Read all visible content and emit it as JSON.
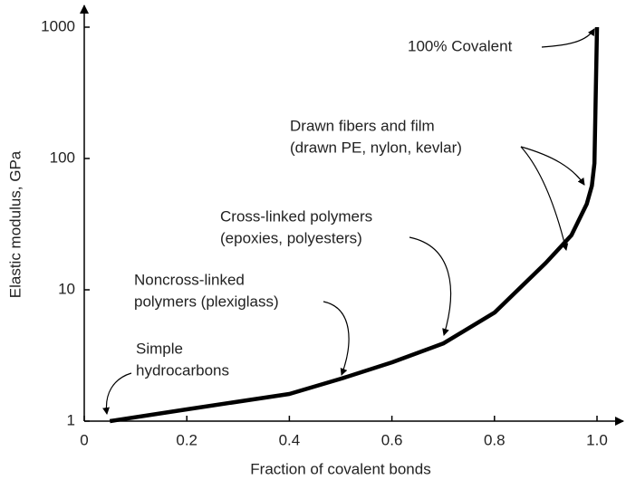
{
  "chart_data": {
    "type": "line",
    "xlabel": "Fraction of covalent bonds",
    "ylabel": "Elastic modulus, GPa",
    "x": [
      0.05,
      0.2,
      0.4,
      0.5,
      0.6,
      0.7,
      0.8,
      0.9,
      0.95,
      0.98,
      0.99,
      0.995,
      1.0
    ],
    "values": [
      1.0,
      1.23,
      1.61,
      2.1,
      2.8,
      3.9,
      6.7,
      16,
      26,
      45,
      62,
      92,
      1000
    ],
    "color": "#000000",
    "xlim": [
      0,
      1.05
    ],
    "xticks": [
      0,
      0.2,
      0.4,
      0.6,
      0.8,
      {
        "value": 1,
        "label": "1.0"
      }
    ],
    "ylim": [
      1,
      1000
    ],
    "yticks": [
      1,
      10,
      100,
      1000
    ],
    "ylog": true,
    "annotations": [
      {
        "lines": [
          "100% Covalent"
        ]
      },
      {
        "lines": [
          "Drawn fibers and film",
          "(drawn PE, nylon, kevlar)"
        ]
      },
      {
        "lines": [
          "Cross-linked polymers",
          "(epoxies, polyesters)"
        ]
      },
      {
        "lines": [
          "Noncross-linked",
          "polymers (plexiglass)"
        ]
      },
      {
        "lines": [
          "Simple",
          "hydrocarbons"
        ]
      }
    ]
  }
}
